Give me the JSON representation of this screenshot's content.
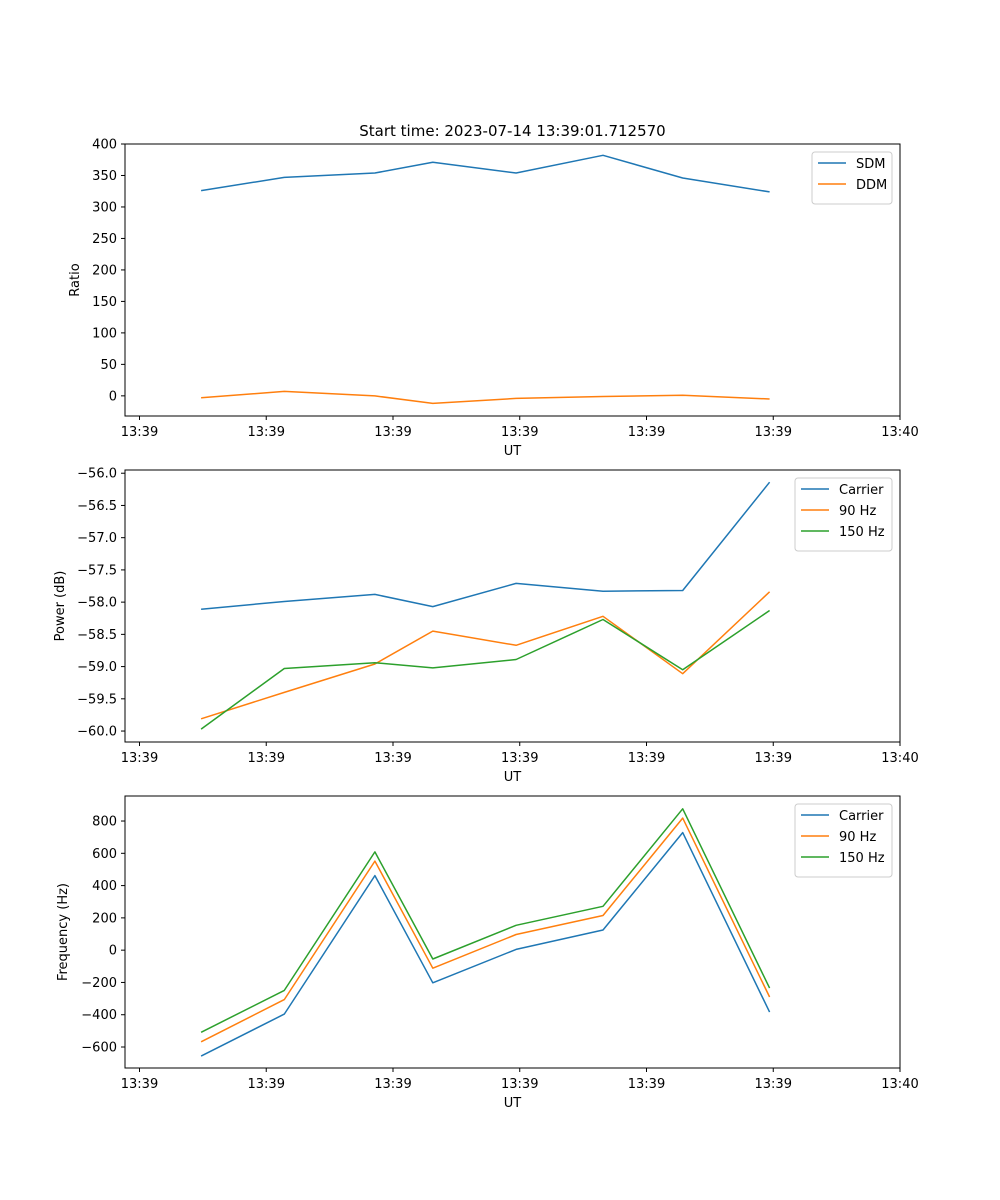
{
  "figure_title": "Start time: 2023-07-14 13:39:01.712570",
  "colors": {
    "blue": "#1f77b4",
    "orange": "#ff7f0e",
    "green": "#2ca02c"
  },
  "chart_data": [
    {
      "type": "line",
      "title": "Start time: 2023-07-14 13:39:01.712570",
      "xlabel": "UT",
      "ylabel": "Ratio",
      "xlim": [
        0,
        10.7
      ],
      "ylim": [
        -32,
        400
      ],
      "x": [
        1.05,
        2.2,
        3.45,
        4.25,
        5.4,
        6.6,
        7.7,
        8.9
      ],
      "x_ticks": [
        0.2,
        1.95,
        3.7,
        5.45,
        7.2,
        8.95,
        10.7
      ],
      "x_tick_labels": [
        "13:39",
        "13:39",
        "13:39",
        "13:39",
        "13:39",
        "13:39",
        "13:40"
      ],
      "y_ticks": [
        0,
        50,
        100,
        150,
        200,
        250,
        300,
        350,
        400
      ],
      "y_tick_labels": [
        "0",
        "50",
        "100",
        "150",
        "200",
        "250",
        "300",
        "350",
        "400"
      ],
      "legend_position": "top-right",
      "series": [
        {
          "name": "SDM",
          "color": "#1f77b4",
          "values": [
            326,
            347,
            354,
            371,
            354,
            382,
            346,
            324
          ]
        },
        {
          "name": "DDM",
          "color": "#ff7f0e",
          "values": [
            -3,
            7,
            0,
            -12,
            -4,
            -1,
            1,
            -5
          ]
        }
      ]
    },
    {
      "type": "line",
      "title": "",
      "xlabel": "UT",
      "ylabel": "Power (dB)",
      "xlim": [
        0,
        10.7
      ],
      "ylim": [
        -60.17,
        -55.95
      ],
      "x": [
        1.05,
        2.2,
        3.45,
        4.25,
        5.4,
        6.6,
        7.7,
        8.9
      ],
      "x_ticks": [
        0.2,
        1.95,
        3.7,
        5.45,
        7.2,
        8.95,
        10.7
      ],
      "x_tick_labels": [
        "13:39",
        "13:39",
        "13:39",
        "13:39",
        "13:39",
        "13:39",
        "13:40"
      ],
      "y_ticks": [
        -60.0,
        -59.5,
        -59.0,
        -58.5,
        -58.0,
        -57.5,
        -57.0,
        -56.5,
        -56.0
      ],
      "y_tick_labels": [
        "−60.0",
        "−59.5",
        "−59.0",
        "−58.5",
        "−58.0",
        "−57.5",
        "−57.0",
        "−56.5",
        "−56.0"
      ],
      "legend_position": "top-right",
      "series": [
        {
          "name": "Carrier",
          "color": "#1f77b4",
          "values": [
            -58.11,
            -57.99,
            -57.88,
            -58.07,
            -57.71,
            -57.83,
            -57.82,
            -56.14
          ]
        },
        {
          "name": "90 Hz",
          "color": "#ff7f0e",
          "values": [
            -59.81,
            -59.4,
            -58.96,
            -58.45,
            -58.67,
            -58.22,
            -59.11,
            -57.84
          ]
        },
        {
          "name": "150 Hz",
          "color": "#2ca02c",
          "values": [
            -59.97,
            -59.03,
            -58.94,
            -59.02,
            -58.89,
            -58.27,
            -59.05,
            -58.13
          ]
        }
      ]
    },
    {
      "type": "line",
      "title": "",
      "xlabel": "UT",
      "ylabel": "Frequency (Hz)",
      "xlim": [
        0,
        10.7
      ],
      "ylim": [
        -730,
        955
      ],
      "x": [
        1.05,
        2.2,
        3.45,
        4.25,
        5.4,
        6.6,
        7.7,
        8.9
      ],
      "x_ticks": [
        0.2,
        1.95,
        3.7,
        5.45,
        7.2,
        8.95,
        10.7
      ],
      "x_tick_labels": [
        "13:39",
        "13:39",
        "13:39",
        "13:39",
        "13:39",
        "13:39",
        "13:40"
      ],
      "y_ticks": [
        -600,
        -400,
        -200,
        0,
        200,
        400,
        600,
        800
      ],
      "y_tick_labels": [
        "−600",
        "−400",
        "−200",
        "0",
        "200",
        "400",
        "600",
        "800"
      ],
      "legend_position": "top-right",
      "series": [
        {
          "name": "Carrier",
          "color": "#1f77b4",
          "values": [
            -656,
            -396,
            462,
            -202,
            5,
            125,
            728,
            -384
          ]
        },
        {
          "name": "90 Hz",
          "color": "#ff7f0e",
          "values": [
            -568,
            -306,
            552,
            -112,
            97,
            215,
            818,
            -290
          ]
        },
        {
          "name": "150 Hz",
          "color": "#2ca02c",
          "values": [
            -509,
            -249,
            609,
            -55,
            154,
            272,
            876,
            -235
          ]
        }
      ]
    }
  ]
}
